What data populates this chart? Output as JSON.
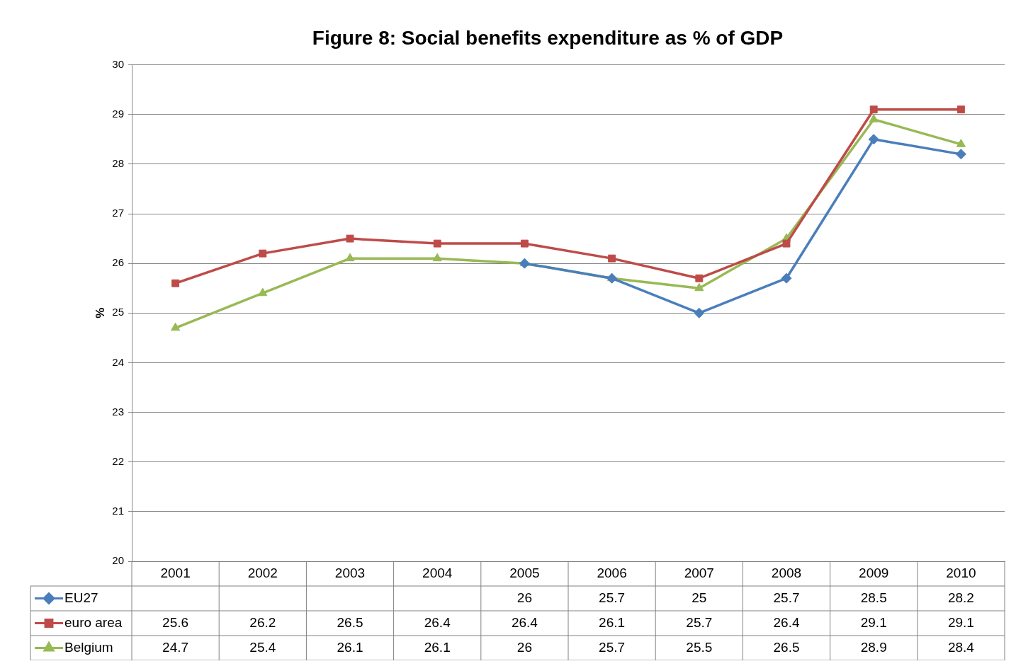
{
  "chart_data": {
    "type": "line",
    "title": "Figure 8: Social benefits expenditure as % of GDP",
    "ylabel": "%",
    "categories": [
      "2001",
      "2002",
      "2003",
      "2004",
      "2005",
      "2006",
      "2007",
      "2008",
      "2009",
      "2010"
    ],
    "series": [
      {
        "name": "EU27",
        "color": "#4a7ebb",
        "marker": "diamond",
        "values": [
          null,
          null,
          null,
          null,
          26,
          25.7,
          25,
          25.7,
          28.5,
          28.2
        ]
      },
      {
        "name": "euro area",
        "color": "#be4b48",
        "marker": "square",
        "values": [
          25.6,
          26.2,
          26.5,
          26.4,
          26.4,
          26.1,
          25.7,
          26.4,
          29.1,
          29.1
        ]
      },
      {
        "name": "Belgium",
        "color": "#98b954",
        "marker": "triangle",
        "values": [
          24.7,
          25.4,
          26.1,
          26.1,
          26,
          25.7,
          25.5,
          26.5,
          28.9,
          28.4
        ]
      }
    ],
    "ylim": [
      20,
      30
    ],
    "yticks": [
      20,
      21,
      22,
      23,
      24,
      25,
      26,
      27,
      28,
      29,
      30
    ],
    "grid": "y",
    "legend": "bottom",
    "data_labels": true
  }
}
